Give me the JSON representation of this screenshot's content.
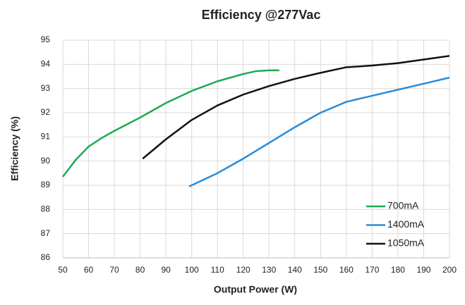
{
  "chart_data": {
    "type": "line",
    "title": "Efficiency @277Vac",
    "xlabel": "Output Power (W)",
    "ylabel": "Efficiency (%)",
    "xlim": [
      50,
      200
    ],
    "xticks": [
      50,
      60,
      70,
      80,
      90,
      100,
      110,
      120,
      130,
      140,
      150,
      160,
      170,
      180,
      190,
      200
    ],
    "ylim": [
      86,
      95
    ],
    "yticks": [
      86,
      87,
      88,
      89,
      90,
      91,
      92,
      93,
      94,
      95
    ],
    "grid": true,
    "legend": "lower right",
    "series": [
      {
        "name": "700mA",
        "color": "#1daa55",
        "x": [
          50,
          55,
          60,
          65,
          70,
          80,
          90,
          100,
          110,
          120,
          125,
          130,
          134
        ],
        "values": [
          89.35,
          90.05,
          90.6,
          90.95,
          91.25,
          91.8,
          92.4,
          92.9,
          93.3,
          93.6,
          93.72,
          93.75,
          93.75
        ]
      },
      {
        "name": "1400mA",
        "color": "#2b8bd6",
        "x": [
          99,
          110,
          120,
          130,
          140,
          150,
          160,
          170,
          180,
          190,
          200
        ],
        "values": [
          88.95,
          89.5,
          90.1,
          90.75,
          91.4,
          92.0,
          92.45,
          92.7,
          92.95,
          93.2,
          93.45
        ]
      },
      {
        "name": "1050mA",
        "color": "#111111",
        "x": [
          81,
          90,
          100,
          110,
          120,
          130,
          140,
          150,
          160,
          170,
          180,
          190,
          200
        ],
        "values": [
          90.1,
          90.9,
          91.7,
          92.3,
          92.75,
          93.1,
          93.4,
          93.65,
          93.88,
          93.95,
          94.05,
          94.2,
          94.35
        ]
      }
    ]
  }
}
